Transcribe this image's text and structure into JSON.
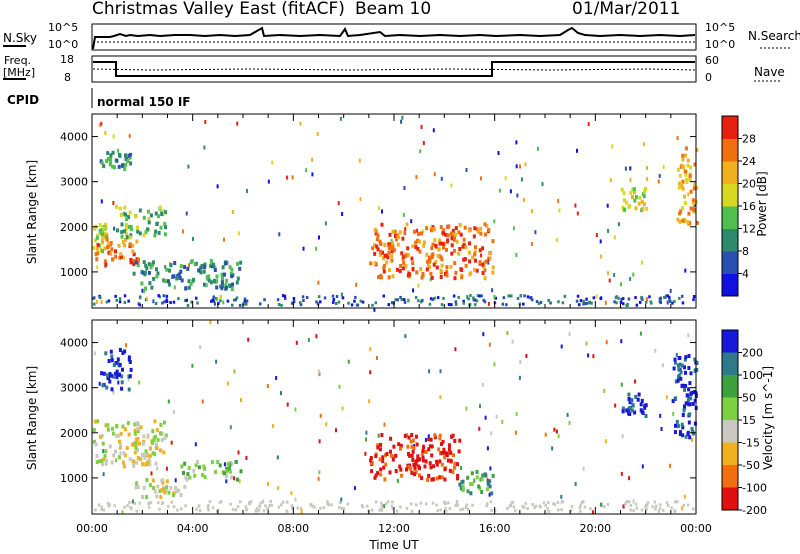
{
  "header": {
    "title": "Christmas Valley East (fitACF)",
    "beam": "Beam 10",
    "date": "01/Mar/2011"
  },
  "params": {
    "nsky_label": "N.Sky",
    "nsky_ticks": [
      "10^5",
      "10^0"
    ],
    "nsearch_label": "N.Search",
    "nsearch_ticks": [
      "10^5",
      "10^0"
    ],
    "freq_label_line1": "Freq.",
    "freq_label_line2": "[MHz]",
    "freq_ticks": [
      "18",
      "8"
    ],
    "nave_label": "Nave",
    "nave_ticks": [
      "60",
      "0"
    ],
    "cpid_label": "CPID",
    "cpid_value": "normal 150 IF"
  },
  "chart_data": [
    {
      "type": "heatmap",
      "name": "power",
      "ylabel": "Slant Range [km]",
      "yticks": [
        "1000",
        "2000",
        "3000",
        "4000"
      ],
      "ylim": [
        200,
        4500
      ],
      "xlim_hours": [
        0,
        24
      ],
      "colorbar_label": "Power [dB]",
      "colorbar_ticks": [
        "4",
        "8",
        "12",
        "16",
        "20",
        "24",
        "28"
      ],
      "colorbar_colors": [
        "#1010e0",
        "#2a4fb0",
        "#2e8a6a",
        "#4fc04f",
        "#d8d820",
        "#f0b020",
        "#f07010",
        "#e82010"
      ],
      "regions": [
        {
          "t0": 0.0,
          "t1": 0.6,
          "r0": 1500,
          "r1": 2100,
          "level": 4
        },
        {
          "t0": 0.1,
          "t1": 1.8,
          "r0": 1200,
          "r1": 1800,
          "level": 6
        },
        {
          "t0": 0.9,
          "t1": 2.9,
          "r0": 1800,
          "r1": 2500,
          "level": 3
        },
        {
          "t0": 0.3,
          "t1": 1.5,
          "r0": 3300,
          "r1": 3700,
          "level": 2
        },
        {
          "t0": 1.6,
          "t1": 5.9,
          "r0": 650,
          "r1": 1300,
          "level": 2
        },
        {
          "t0": 11.0,
          "t1": 15.9,
          "r0": 900,
          "r1": 2100,
          "level": 6
        },
        {
          "t0": 21.0,
          "t1": 22.0,
          "r0": 2400,
          "r1": 2900,
          "level": 4
        },
        {
          "t0": 23.2,
          "t1": 24.0,
          "r0": 2100,
          "r1": 3800,
          "level": 5
        }
      ]
    },
    {
      "type": "heatmap",
      "name": "velocity",
      "ylabel": "Slant Range [km]",
      "yticks": [
        "1000",
        "2000",
        "3000",
        "4000"
      ],
      "ylim": [
        200,
        4500
      ],
      "xlim_hours": [
        0,
        24
      ],
      "xticks": [
        "00:00",
        "04:00",
        "08:00",
        "12:00",
        "16:00",
        "20:00",
        "00:00"
      ],
      "xlabel": "Time UT",
      "colorbar_label": "Velocity [m s^-1]",
      "colorbar_ticks": [
        "200",
        "100",
        "50",
        "15",
        "-15",
        "-50",
        "-100",
        "-200"
      ],
      "colorbar_colors": [
        "#1818d8",
        "#2e7a8a",
        "#3fa03f",
        "#7dd040",
        "#c8c8c0",
        "#f0b020",
        "#f07010",
        "#e01010"
      ],
      "regions": [
        {
          "t0": 0.3,
          "t1": 1.5,
          "r0": 3000,
          "r1": 3900,
          "level": 0
        },
        {
          "t0": 0.0,
          "t1": 2.9,
          "r0": 1300,
          "r1": 2300,
          "level": 4
        },
        {
          "t0": 1.6,
          "t1": 3.8,
          "r0": 600,
          "r1": 1000,
          "level": 4
        },
        {
          "t0": 3.5,
          "t1": 5.9,
          "r0": 1000,
          "r1": 1400,
          "level": 3
        },
        {
          "t0": 11.0,
          "t1": 14.6,
          "r0": 1000,
          "r1": 2000,
          "level": 7
        },
        {
          "t0": 14.5,
          "t1": 15.9,
          "r0": 700,
          "r1": 1200,
          "level": 2
        },
        {
          "t0": 21.0,
          "t1": 22.0,
          "r0": 2400,
          "r1": 2900,
          "level": 0
        },
        {
          "t0": 23.0,
          "t1": 24.0,
          "r0": 1900,
          "r1": 3800,
          "level": 0
        }
      ]
    }
  ]
}
